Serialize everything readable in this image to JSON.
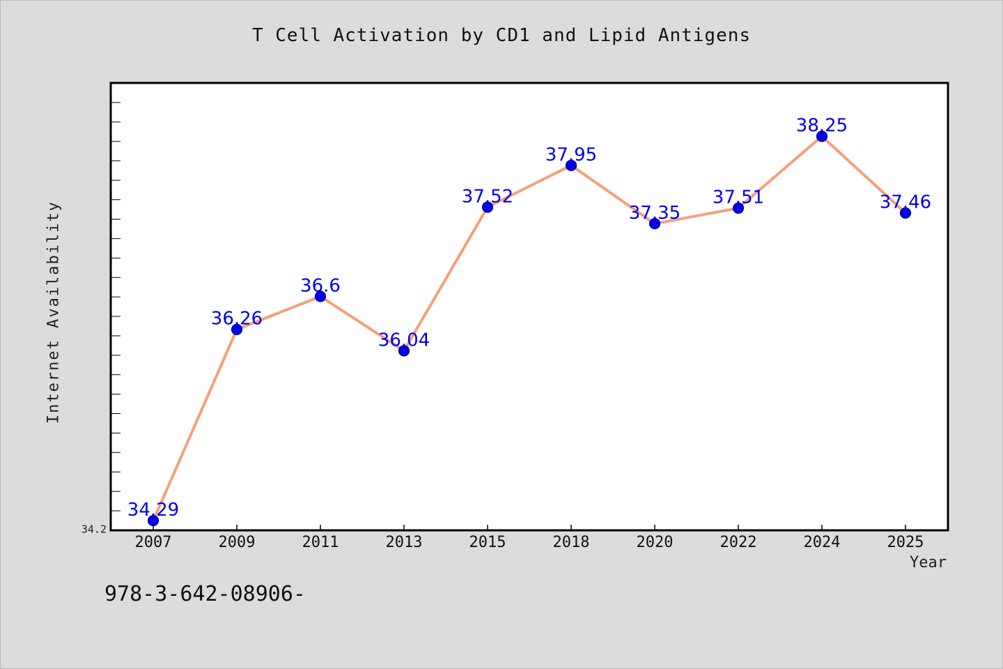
{
  "chart_data": {
    "type": "line",
    "title": "T Cell Activation by CD1 and Lipid Antigens",
    "xlabel": "Year",
    "ylabel": "Internet Availability",
    "categories": [
      "2007",
      "2009",
      "2011",
      "2013",
      "2015",
      "2018",
      "2020",
      "2022",
      "2024",
      "2025"
    ],
    "series": [
      {
        "values": [
          34.29,
          36.26,
          36.6,
          36.04,
          37.52,
          37.95,
          37.35,
          37.51,
          38.25,
          37.46
        ],
        "line_color": "#f4a07a",
        "marker_color": "#0000ee",
        "label_color": "#0000ee"
      }
    ],
    "y_tick_labels": [
      "34.2"
    ],
    "ylim": [
      34.19,
      38.8
    ],
    "grid": false,
    "legend": "none"
  },
  "footer": {
    "isbn": "978-3-642-08906-"
  }
}
